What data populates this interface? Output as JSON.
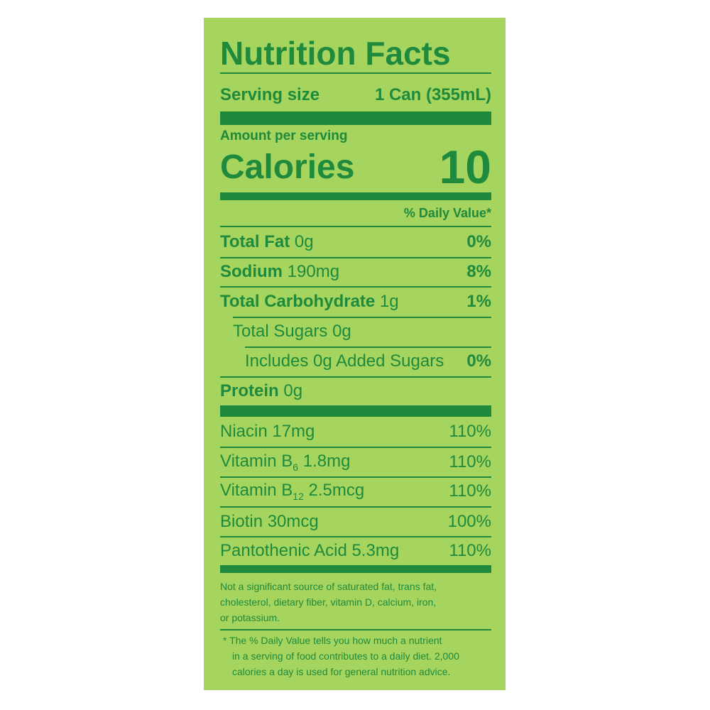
{
  "title": "Nutrition Facts",
  "serving": {
    "label": "Serving size",
    "value": "1 Can (355mL)"
  },
  "amount_per_serving": "Amount per serving",
  "calories": {
    "label": "Calories",
    "value": "10"
  },
  "daily_value_header": "% Daily Value*",
  "nutrients": [
    {
      "name": "Total Fat",
      "amount": "0g",
      "dv": "0%"
    },
    {
      "name": "Sodium",
      "amount": "190mg",
      "dv": "8%"
    },
    {
      "name": "Total Carbohydrate",
      "amount": "1g",
      "dv": "1%"
    },
    {
      "name": "Total Sugars 0g"
    },
    {
      "name": "Includes 0g Added Sugars",
      "dv": "0%"
    },
    {
      "name": "Protein",
      "amount": "0g"
    }
  ],
  "vitamins": [
    {
      "name": "Niacin 17mg",
      "dv": "110%"
    },
    {
      "name": "Vitamin B",
      "subscript": "6",
      "amount": "1.8mg",
      "dv": "110%"
    },
    {
      "name": "Vitamin B",
      "subscript": "12",
      "amount": "2.5mcg",
      "dv": "110%"
    },
    {
      "name": "Biotin 30mcg",
      "dv": "100%"
    },
    {
      "name": "Pantothenic Acid 5.3mg",
      "dv": "110%"
    }
  ],
  "footnotes": [
    [
      "Not a significant source of saturated fat, trans fat,",
      "cholesterol, dietary fiber, vitamin D, calcium, iron,",
      "or potassium."
    ],
    [
      "* The % Daily Value tells you how much a nutrient",
      "in a serving of food contributes to a daily diet. 2,000",
      "calories a day is used for general nutrition advice."
    ]
  ]
}
